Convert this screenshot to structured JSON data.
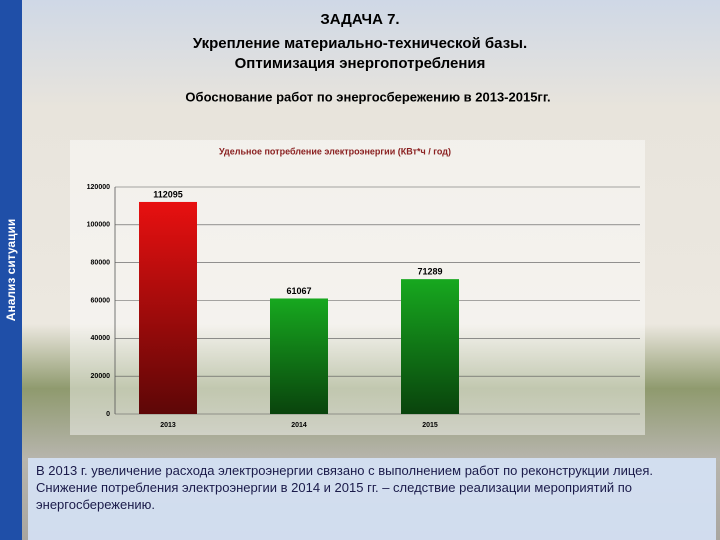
{
  "slide": {
    "title_lines": [
      "ЗАДАЧА 7.",
      "Укрепление материально-технической базы.",
      "Оптимизация энергопотребления"
    ],
    "subtitle": "Обоснование работ по энергосбережению в 2013-2015гг.",
    "side_label": "Анализ ситуации",
    "footer": "В 2013 г. увеличение расхода электроэнергии связано с выполнением работ по реконструкции лицея. Снижение потребления электроэнергии в 2014 и 2015 гг. – следствие реализации мероприятий по энергосбережению."
  },
  "chart_data": {
    "type": "bar",
    "title": "Удельное потребление электроэнергии (КВт*ч / год)",
    "categories": [
      "2013",
      "2014",
      "2015"
    ],
    "values": [
      112095,
      61067,
      71289
    ],
    "colors": [
      "#e81010",
      "#17a81f",
      "#17a81f"
    ],
    "ylim": [
      0,
      120000
    ],
    "yticks": [
      0,
      20000,
      40000,
      60000,
      80000,
      100000,
      120000
    ],
    "grid": true
  }
}
